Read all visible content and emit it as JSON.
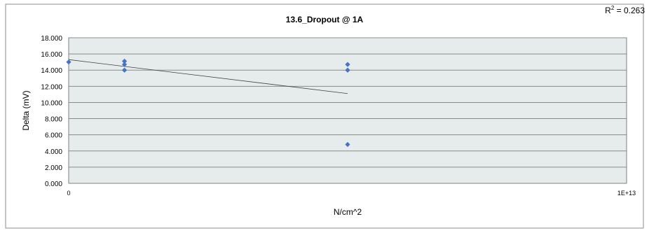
{
  "chart_data": {
    "type": "scatter",
    "title": "13.6_Dropout @ 1A",
    "xlabel": "N/cm^2",
    "ylabel": "Delta (mV)",
    "xlim": [
      0,
      10000000000000
    ],
    "ylim": [
      0,
      18
    ],
    "x_ticks": [
      "0",
      "1E+13"
    ],
    "y_ticks": [
      "0.000",
      "2.000",
      "4.000",
      "6.000",
      "8.000",
      "10.000",
      "12.000",
      "14.000",
      "16.000",
      "18.000"
    ],
    "series": [
      {
        "color": "#4472c4",
        "points": [
          {
            "x": 0,
            "y": 15.0
          },
          {
            "x": 1000000000000,
            "y": 15.1
          },
          {
            "x": 1000000000000,
            "y": 14.7
          },
          {
            "x": 1000000000000,
            "y": 14.0
          },
          {
            "x": 5000000000000,
            "y": 14.7
          },
          {
            "x": 5000000000000,
            "y": 14.0
          },
          {
            "x": 5000000000000,
            "y": 4.8
          }
        ]
      }
    ],
    "trendline": {
      "type": "linear",
      "x_start": 0,
      "x_end": 5000000000000,
      "y_start": 15.3,
      "y_end": 11.1
    },
    "r_squared_label": "R",
    "r_squared_sup": "2",
    "r_squared_value": " = 0.263",
    "grid": true,
    "plot_background": "#e6ecec",
    "legend": "none"
  }
}
